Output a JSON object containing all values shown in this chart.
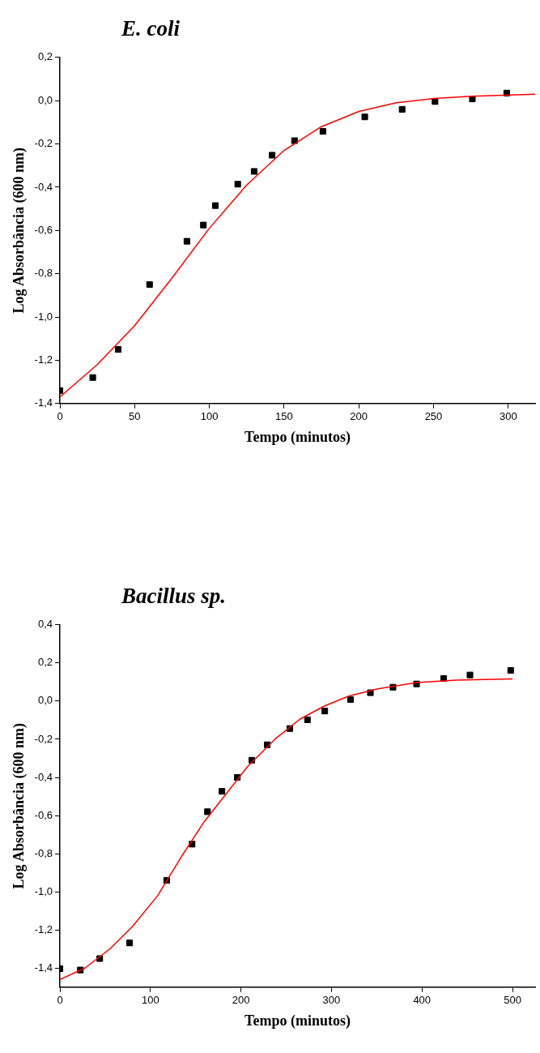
{
  "chart_data": [
    {
      "type": "scatter",
      "title": "E. coli",
      "xlabel": "Tempo (minutos)",
      "ylabel": "Log Absorbância (600 nm)",
      "xlim": [
        0,
        318
      ],
      "xticks": [
        0,
        50,
        100,
        150,
        200,
        250,
        300
      ],
      "ylim": [
        -1.4,
        0.2
      ],
      "yticks": [
        {
          "value": -1.4,
          "label": "-1,4"
        },
        {
          "value": -1.2,
          "label": "-1,2"
        },
        {
          "value": -1.0,
          "label": "-1,0"
        },
        {
          "value": -0.8,
          "label": "-0,8"
        },
        {
          "value": -0.6,
          "label": "-0,6"
        },
        {
          "value": -0.4,
          "label": "-0,4"
        },
        {
          "value": -0.2,
          "label": "-0,2"
        },
        {
          "value": 0,
          "label": "0,0"
        },
        {
          "value": 0.2,
          "label": "0,2"
        }
      ],
      "grid": false,
      "legend": false,
      "series": [
        {
          "marker": "square",
          "color": "#000000",
          "x": [
            0,
            22,
            39,
            60,
            85,
            96,
            104,
            119,
            130,
            142,
            157,
            176,
            204,
            229,
            251,
            276,
            299
          ],
          "values": [
            -1.34,
            -1.28,
            -1.15,
            -0.85,
            -0.65,
            -0.575,
            -0.485,
            -0.386,
            -0.327,
            -0.252,
            -0.185,
            -0.142,
            -0.075,
            -0.04,
            -0.004,
            0.008,
            0.035
          ]
        },
        {
          "type": "line",
          "marker": "none",
          "color": "#ff0000",
          "x": [
            0,
            25,
            50,
            75,
            100,
            125,
            150,
            175,
            200,
            225,
            250,
            275,
            318
          ],
          "values": [
            -1.37,
            -1.22,
            -1.04,
            -0.82,
            -0.59,
            -0.39,
            -0.23,
            -0.12,
            -0.05,
            -0.01,
            0.01,
            0.02,
            0.03
          ]
        }
      ]
    },
    {
      "type": "scatter",
      "title": "Bacillus sp.",
      "xlabel": "Tempo (minutos)",
      "ylabel": "Log Absorbância (600 nm)",
      "xlim": [
        0,
        525
      ],
      "xticks": [
        0,
        100,
        200,
        300,
        400,
        500
      ],
      "ylim": [
        -1.5,
        0.4
      ],
      "yticks": [
        {
          "value": -1.4,
          "label": "-1,4"
        },
        {
          "value": -1.2,
          "label": "-1,2"
        },
        {
          "value": -1.0,
          "label": "-1,0"
        },
        {
          "value": -0.8,
          "label": "-0,8"
        },
        {
          "value": -0.6,
          "label": "-0,6"
        },
        {
          "value": -0.4,
          "label": "-0,4"
        },
        {
          "value": -0.2,
          "label": "-0,2"
        },
        {
          "value": 0,
          "label": "0,0"
        },
        {
          "value": 0.2,
          "label": "0,2"
        },
        {
          "value": 0.4,
          "label": "0,4"
        }
      ],
      "grid": false,
      "legend": false,
      "series": [
        {
          "marker": "square",
          "color": "#000000",
          "x": [
            0,
            22.6,
            44,
            77,
            118,
            146,
            163,
            179,
            196,
            212,
            229,
            254,
            273.5,
            292.6,
            321,
            343,
            368,
            394,
            424,
            453,
            498
          ],
          "values": [
            -1.403,
            -1.41,
            -1.35,
            -1.268,
            -0.94,
            -0.75,
            -0.58,
            -0.473,
            -0.4,
            -0.31,
            -0.229,
            -0.144,
            -0.098,
            -0.052,
            0.008,
            0.044,
            0.073,
            0.09,
            0.119,
            0.137,
            0.161
          ]
        },
        {
          "type": "line",
          "marker": "none",
          "color": "#ff0000",
          "x": [
            0,
            27.6,
            55,
            80.5,
            108,
            135,
            159,
            183,
            207,
            237.5,
            265,
            292,
            319,
            350,
            394,
            438,
            500
          ],
          "values": [
            -1.46,
            -1.4,
            -1.3,
            -1.18,
            -1.02,
            -0.81,
            -0.635,
            -0.49,
            -0.345,
            -0.2,
            -0.095,
            -0.026,
            0.026,
            0.063,
            0.097,
            0.11,
            0.116
          ]
        }
      ]
    }
  ]
}
